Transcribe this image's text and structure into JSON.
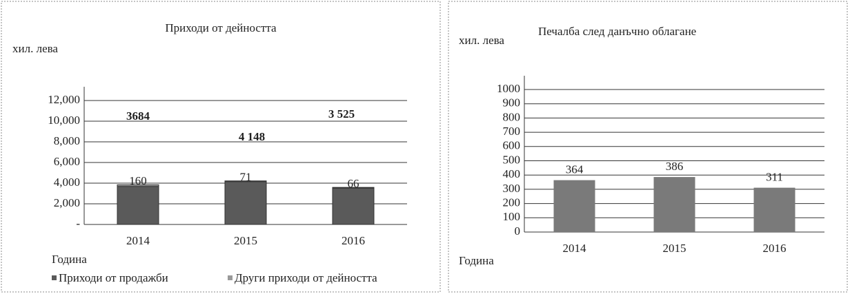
{
  "chart_data": [
    {
      "type": "stacked_bar",
      "title": "Приходи от дейността",
      "y_label": "хил. лева",
      "x_label": "Година",
      "categories": [
        "2014",
        "2015",
        "2016"
      ],
      "series": [
        {
          "name": "Приходи от продажби",
          "color": "#5a5a5a",
          "values": [
            3684,
            4148,
            3525
          ],
          "value_labels": [
            "3684",
            "4 148",
            "3 525"
          ]
        },
        {
          "name": "Други приходи от дейността",
          "color": "#9a9a9a",
          "values": [
            160,
            71,
            66
          ]
        }
      ],
      "ylim": [
        0,
        12000
      ],
      "yticks": [
        {
          "value": 0,
          "label": "-"
        },
        {
          "value": 2000,
          "label": "2,000"
        },
        {
          "value": 4000,
          "label": "4,000"
        },
        {
          "value": 6000,
          "label": "6,000"
        },
        {
          "value": 8000,
          "label": "8,000"
        },
        {
          "value": 10000,
          "label": "10,000"
        },
        {
          "value": 12000,
          "label": "12,000"
        }
      ],
      "grid": true,
      "legend": "bottom"
    },
    {
      "type": "bar",
      "title": "Печалба след данъчно облагане",
      "y_label": "хил. лева",
      "x_label": "Година",
      "categories": [
        "2014",
        "2015",
        "2016"
      ],
      "values": [
        364,
        386,
        311
      ],
      "color": "#7a7a7a",
      "ylim": [
        0,
        1000
      ],
      "yticks": [
        0,
        100,
        200,
        300,
        400,
        500,
        600,
        700,
        800,
        900,
        1000
      ],
      "grid": true
    }
  ]
}
